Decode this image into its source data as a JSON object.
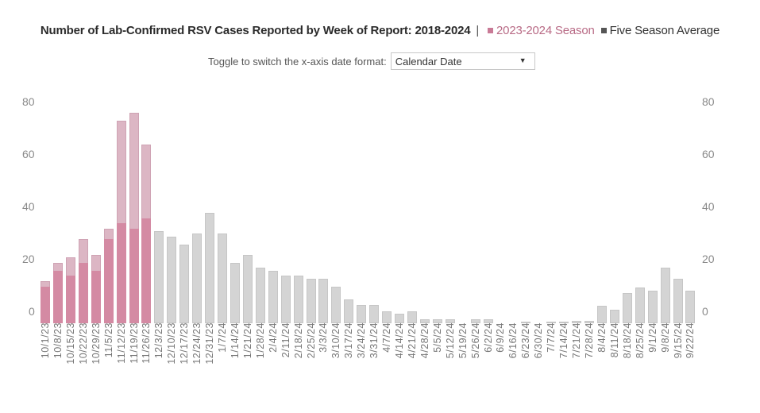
{
  "header": {
    "title": "Number of Lab-Confirmed RSV Cases Reported by Week of Report: 2018-2024",
    "separator": "|",
    "legend": [
      {
        "label": "2023-2024 Season",
        "color": "#c97a96"
      },
      {
        "label": "Five Season Average",
        "color": "#555555"
      }
    ]
  },
  "toggle": {
    "label": "Toggle to switch the x-axis date format:",
    "selected": "Calendar Date",
    "arrow": "▼"
  },
  "axis": {
    "left_ticks": [
      "80",
      "60",
      "40",
      "20",
      "0"
    ],
    "right_ticks": [
      "80",
      "60",
      "40",
      "20",
      "0"
    ]
  },
  "colors": {
    "season": "#dcb6c4",
    "overlap": "#d48aa3",
    "average": "#d4d4d4"
  },
  "chart_data": {
    "type": "bar",
    "title": "Number of Lab-Confirmed RSV Cases Reported by Week of Report: 2018-2024",
    "xlabel": "",
    "ylabel": "",
    "ylim": [
      0,
      80
    ],
    "yticks": [
      0,
      20,
      40,
      60,
      80
    ],
    "grid": false,
    "legend_position": "top-inline",
    "categories": [
      "10/1/23",
      "10/8/23",
      "10/15/23",
      "10/22/23",
      "10/29/23",
      "11/5/23",
      "11/12/23",
      "11/19/23",
      "11/26/23",
      "12/3/23",
      "12/10/23",
      "12/17/23",
      "12/24/23",
      "12/31/23",
      "1/7/24",
      "1/14/24",
      "1/21/24",
      "1/28/24",
      "2/4/24",
      "2/11/24",
      "2/18/24",
      "2/25/24",
      "3/3/24",
      "3/10/24",
      "3/17/24",
      "3/24/24",
      "3/31/24",
      "4/7/24",
      "4/14/24",
      "4/21/24",
      "4/28/24",
      "5/5/24",
      "5/12/24",
      "5/19/24",
      "5/26/24",
      "6/2/24",
      "6/9/24",
      "6/16/24",
      "6/23/24",
      "6/30/24",
      "7/7/24",
      "7/14/24",
      "7/21/24",
      "7/28/24",
      "8/4/24",
      "8/11/24",
      "8/18/24",
      "8/25/24",
      "9/1/24",
      "9/8/24",
      "9/15/24",
      "9/22/24"
    ],
    "series": [
      {
        "name": "2023-2024 Season",
        "values": [
          16,
          23,
          25,
          32,
          26,
          36,
          77,
          80,
          68,
          null,
          null,
          null,
          null,
          null,
          null,
          null,
          null,
          null,
          null,
          null,
          null,
          null,
          null,
          null,
          null,
          null,
          null,
          null,
          null,
          null,
          null,
          null,
          null,
          null,
          null,
          null,
          null,
          null,
          null,
          null,
          null,
          null,
          null,
          null,
          null,
          null,
          null,
          null,
          null,
          null,
          null,
          null
        ]
      },
      {
        "name": "Five Season Average",
        "values": [
          14,
          20,
          18,
          23,
          20,
          32,
          38,
          36,
          40,
          35,
          33,
          30,
          34,
          42,
          34,
          23,
          26,
          21,
          20,
          18,
          18,
          17,
          17,
          14,
          9,
          7,
          7,
          4.5,
          3.5,
          4.5,
          1.5,
          1.5,
          1.5,
          0,
          1.5,
          1.5,
          0,
          0,
          0.5,
          0,
          0.5,
          0.5,
          1,
          1,
          6.5,
          5,
          11.5,
          13.5,
          12.5,
          21,
          17,
          12.5
        ]
      }
    ]
  }
}
